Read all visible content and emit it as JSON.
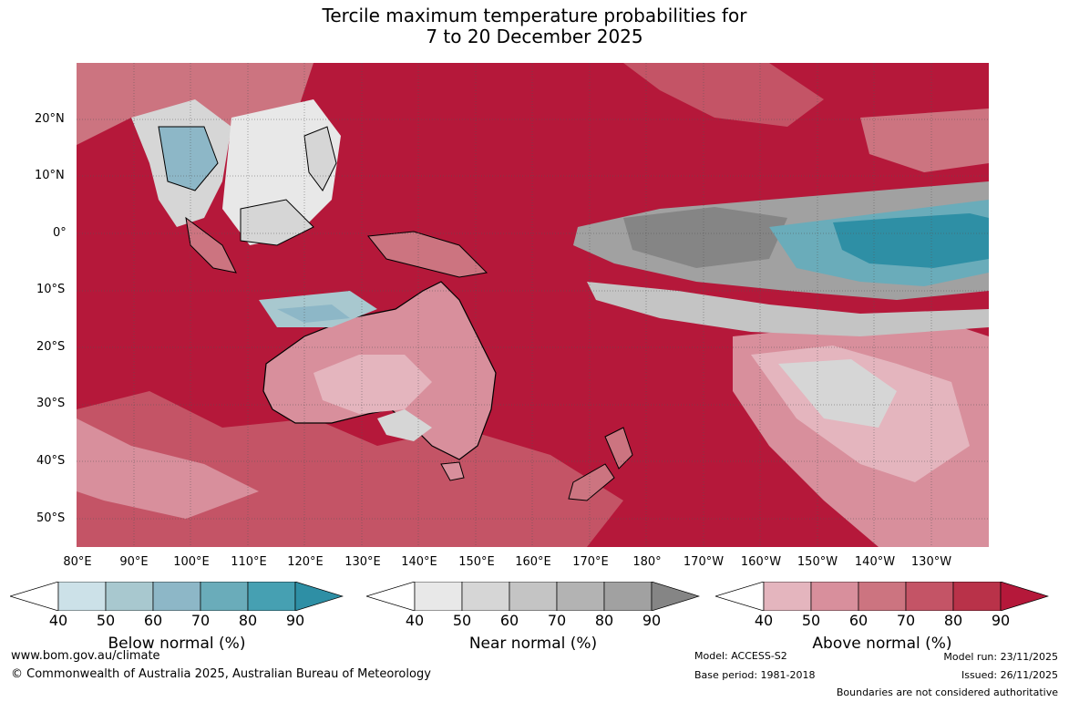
{
  "title_line1": "Tercile maximum temperature probabilities for",
  "title_line2": "7 to 20 December 2025",
  "lat_labels": [
    "20°N",
    "10°N",
    "0°",
    "10°S",
    "20°S",
    "30°S",
    "40°S",
    "50°S"
  ],
  "lon_labels": [
    "80°E",
    "90°E",
    "100°E",
    "110°E",
    "120°E",
    "130°E",
    "140°E",
    "150°E",
    "160°E",
    "170°E",
    "180°",
    "170°W",
    "160°W",
    "150°W",
    "140°W",
    "130°W"
  ],
  "colorbars": [
    {
      "title": "Below normal (%)",
      "ticks": [
        "40",
        "50",
        "60",
        "70",
        "80",
        "90"
      ],
      "colors": [
        "#ffffff",
        "#cce1e8",
        "#a8c8cf",
        "#8db7c7",
        "#6aacba",
        "#46a0b2",
        "#2e8fa5"
      ]
    },
    {
      "title": "Near normal (%)",
      "ticks": [
        "40",
        "50",
        "60",
        "70",
        "80",
        "90"
      ],
      "colors": [
        "#ffffff",
        "#e8e8e8",
        "#d6d6d6",
        "#c4c4c4",
        "#b3b3b3",
        "#a1a1a1",
        "#858585"
      ]
    },
    {
      "title": "Above normal (%)",
      "ticks": [
        "40",
        "50",
        "60",
        "70",
        "80",
        "90"
      ],
      "colors": [
        "#ffffff",
        "#e4b5be",
        "#d88f9c",
        "#cc7480",
        "#c45466",
        "#b93249",
        "#b5183a"
      ]
    }
  ],
  "footer": {
    "url": "www.bom.gov.au/climate",
    "copyright": "© Commonwealth of Australia 2025, Australian Bureau of Meteorology",
    "model": "Model: ACCESS-S2",
    "base_period": "Base period: 1981-2018",
    "model_run": "Model run: 23/11/2025",
    "issued": "Issued: 26/11/2025",
    "disclaimer": "Boundaries are not considered authoritative"
  }
}
